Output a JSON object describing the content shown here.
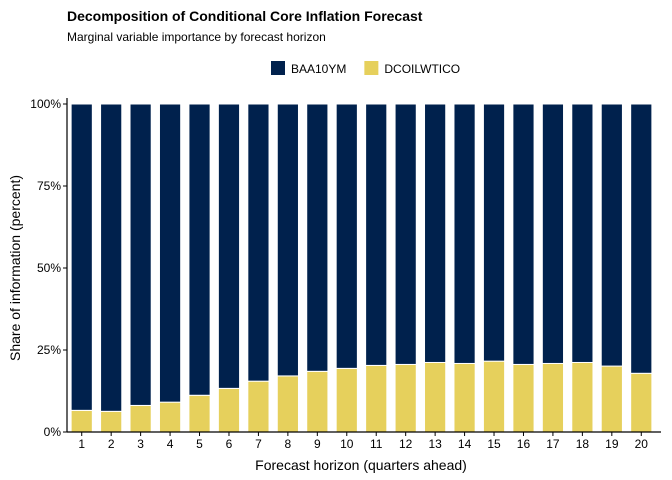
{
  "chart_data": {
    "type": "bar",
    "stacked": true,
    "title": "Decomposition of Conditional Core Inflation Forecast",
    "subtitle": "Marginal variable importance by forecast horizon",
    "xlabel": "Forecast horizon (quarters ahead)",
    "ylabel": "Share of information (percent)",
    "ylim": [
      0,
      100
    ],
    "yticks": [
      "0%",
      "25%",
      "50%",
      "75%",
      "100%"
    ],
    "categories": [
      "1",
      "2",
      "3",
      "4",
      "5",
      "6",
      "7",
      "8",
      "9",
      "10",
      "11",
      "12",
      "13",
      "14",
      "15",
      "16",
      "17",
      "18",
      "19",
      "20"
    ],
    "legend_position": "top",
    "grid": false,
    "series": [
      {
        "name": "BAA10YM",
        "color": "#00214d",
        "values": [
          93.4,
          93.7,
          91.9,
          90.9,
          88.8,
          86.7,
          84.5,
          82.9,
          81.5,
          80.6,
          79.7,
          79.4,
          78.8,
          79.1,
          78.4,
          79.4,
          79.1,
          78.8,
          79.9,
          82.1
        ]
      },
      {
        "name": "DCOILWTICO",
        "color": "#e6d05c",
        "values": [
          6.6,
          6.3,
          8.1,
          9.1,
          11.2,
          13.3,
          15.5,
          17.1,
          18.5,
          19.4,
          20.3,
          20.6,
          21.2,
          20.9,
          21.6,
          20.6,
          20.9,
          21.2,
          20.1,
          17.9
        ]
      }
    ]
  }
}
